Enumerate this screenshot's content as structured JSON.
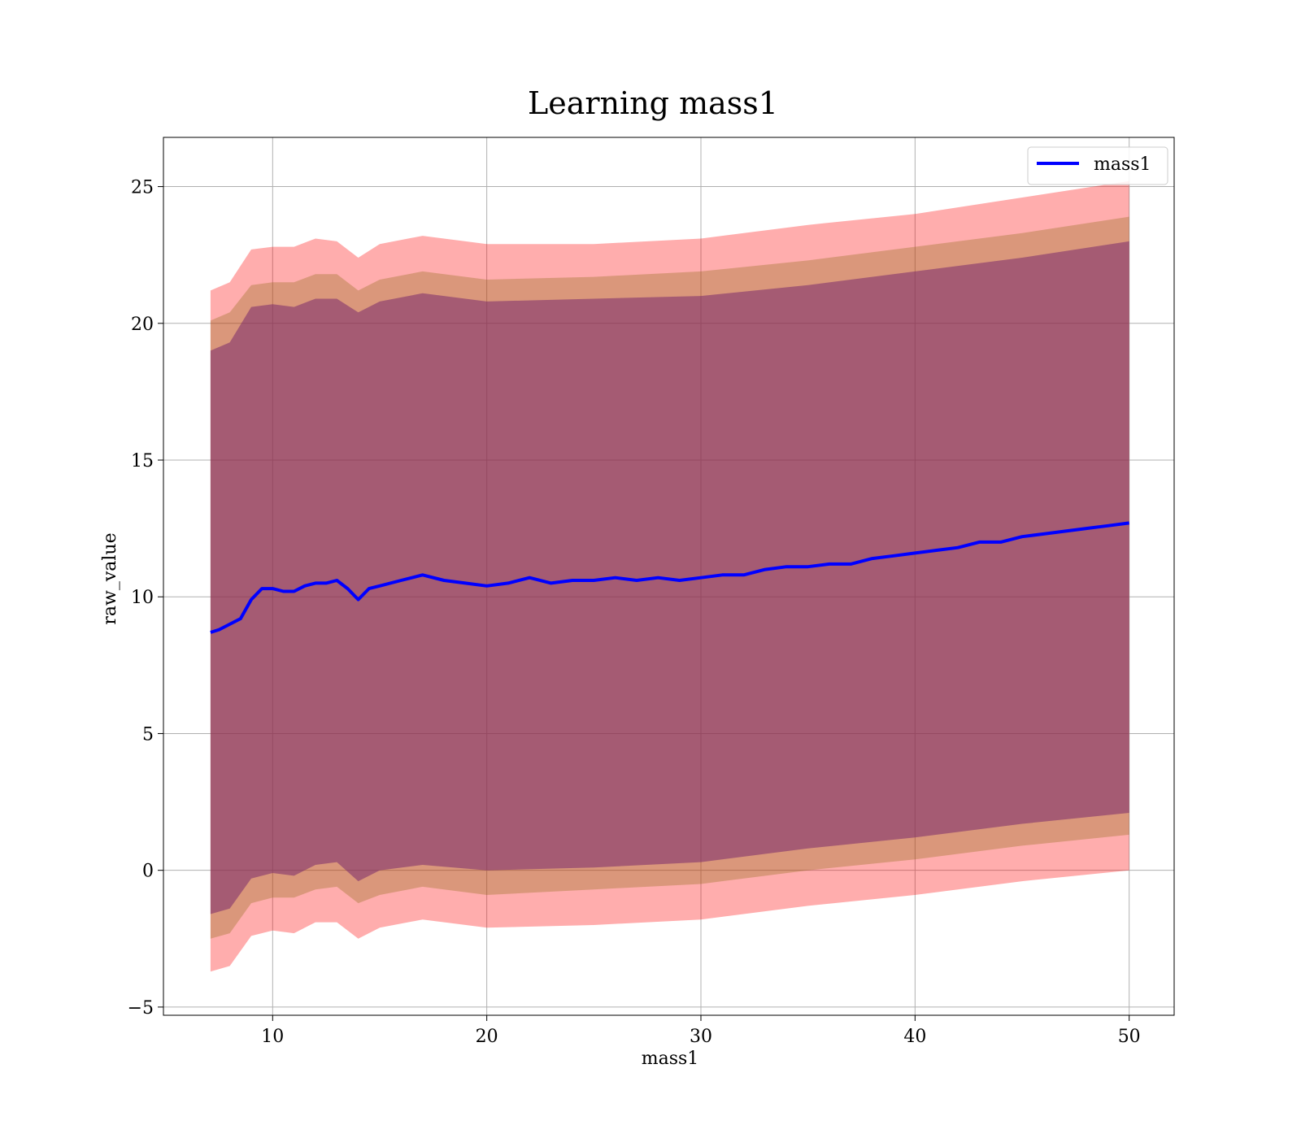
{
  "chart_data": {
    "type": "area",
    "title": "Learning mass1",
    "xlabel": "mass1",
    "ylabel": "raw_value",
    "xlim": [
      4.9,
      52.1
    ],
    "ylim": [
      -5.3,
      26.8
    ],
    "x_ticks": [
      10,
      20,
      30,
      40,
      50
    ],
    "x_tick_labels": [
      "10",
      "20",
      "30",
      "40",
      "50"
    ],
    "y_ticks": [
      -5,
      0,
      5,
      10,
      15,
      20,
      25
    ],
    "y_tick_labels": [
      "−5",
      "0",
      "5",
      "10",
      "15",
      "20",
      "25"
    ],
    "grid": true,
    "legend": {
      "position": "top-right",
      "entries": [
        "mass1"
      ]
    },
    "colors": {
      "line": "#0000ff",
      "band_outer": "#ff0000",
      "band_mid": "#8b6914",
      "band_inner": "#7a2a6e",
      "grid": "#b0b0b0"
    },
    "series": [
      {
        "name": "mass1",
        "kind": "line",
        "x": [
          7.1,
          7.5,
          8.0,
          8.5,
          9.0,
          9.5,
          10.0,
          10.5,
          11.0,
          11.5,
          12.0,
          12.5,
          13.0,
          13.5,
          14.0,
          14.5,
          15.0,
          16.0,
          17.0,
          18.0,
          19.0,
          20.0,
          21.0,
          22.0,
          23.0,
          24.0,
          25.0,
          26.0,
          27.0,
          28.0,
          29.0,
          30.0,
          31.0,
          32.0,
          33.0,
          34.0,
          35.0,
          36.0,
          37.0,
          38.0,
          39.0,
          40.0,
          41.0,
          42.0,
          43.0,
          44.0,
          45.0,
          46.0,
          47.0,
          48.0,
          49.0,
          50.0
        ],
        "y": [
          8.7,
          8.8,
          9.0,
          9.2,
          9.9,
          10.3,
          10.3,
          10.2,
          10.2,
          10.4,
          10.5,
          10.5,
          10.6,
          10.3,
          9.9,
          10.3,
          10.4,
          10.6,
          10.8,
          10.6,
          10.5,
          10.4,
          10.5,
          10.7,
          10.5,
          10.6,
          10.6,
          10.7,
          10.6,
          10.7,
          10.6,
          10.7,
          10.8,
          10.8,
          11.0,
          11.1,
          11.1,
          11.2,
          11.2,
          11.4,
          11.5,
          11.6,
          11.7,
          11.8,
          12.0,
          12.0,
          12.2,
          12.3,
          12.4,
          12.5,
          12.6,
          12.7
        ]
      },
      {
        "name": "",
        "kind": "band",
        "level": "outer",
        "x": [
          7.1,
          8.0,
          9.0,
          10.0,
          11.0,
          12.0,
          13.0,
          14.0,
          15.0,
          17.0,
          20.0,
          25.0,
          30.0,
          35.0,
          40.0,
          45.0,
          50.0
        ],
        "upper": [
          21.2,
          21.5,
          22.7,
          22.8,
          22.8,
          23.1,
          23.0,
          22.4,
          22.9,
          23.2,
          22.9,
          22.9,
          23.1,
          23.6,
          24.0,
          24.6,
          25.2
        ],
        "lower": [
          -3.7,
          -3.5,
          -2.4,
          -2.2,
          -2.3,
          -1.9,
          -1.9,
          -2.5,
          -2.1,
          -1.8,
          -2.1,
          -2.0,
          -1.8,
          -1.3,
          -0.9,
          -0.4,
          0.0
        ]
      },
      {
        "name": "",
        "kind": "band",
        "level": "mid",
        "x": [
          7.1,
          8.0,
          9.0,
          10.0,
          11.0,
          12.0,
          13.0,
          14.0,
          15.0,
          17.0,
          20.0,
          25.0,
          30.0,
          35.0,
          40.0,
          45.0,
          50.0
        ],
        "upper": [
          20.1,
          20.4,
          21.4,
          21.5,
          21.5,
          21.8,
          21.8,
          21.2,
          21.6,
          21.9,
          21.6,
          21.7,
          21.9,
          22.3,
          22.8,
          23.3,
          23.9
        ],
        "lower": [
          -2.5,
          -2.3,
          -1.2,
          -1.0,
          -1.0,
          -0.7,
          -0.6,
          -1.2,
          -0.9,
          -0.6,
          -0.9,
          -0.7,
          -0.5,
          0.0,
          0.4,
          0.9,
          1.3
        ]
      },
      {
        "name": "",
        "kind": "band",
        "level": "inner",
        "x": [
          7.1,
          8.0,
          9.0,
          10.0,
          11.0,
          12.0,
          13.0,
          14.0,
          15.0,
          17.0,
          20.0,
          25.0,
          30.0,
          35.0,
          40.0,
          45.0,
          50.0
        ],
        "upper": [
          19.0,
          19.3,
          20.6,
          20.7,
          20.6,
          20.9,
          20.9,
          20.4,
          20.8,
          21.1,
          20.8,
          20.9,
          21.0,
          21.4,
          21.9,
          22.4,
          23.0
        ],
        "lower": [
          -1.6,
          -1.4,
          -0.3,
          -0.1,
          -0.2,
          0.2,
          0.3,
          -0.4,
          0.0,
          0.2,
          0.0,
          0.1,
          0.3,
          0.8,
          1.2,
          1.7,
          2.1
        ]
      }
    ]
  }
}
